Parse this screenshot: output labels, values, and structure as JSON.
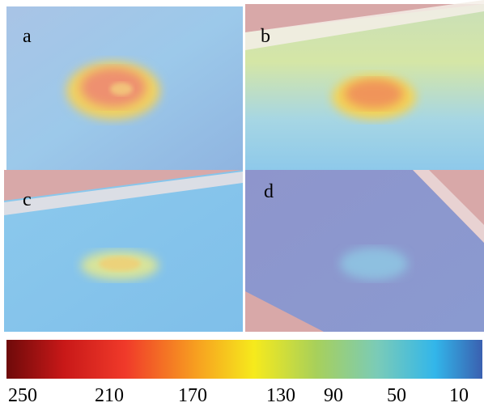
{
  "panels": [
    {
      "label": "a"
    },
    {
      "label": "b"
    },
    {
      "label": "c"
    },
    {
      "label": "d"
    }
  ],
  "colorbar": {
    "ticks": [
      250,
      210,
      170,
      130,
      90,
      50,
      10
    ]
  }
}
